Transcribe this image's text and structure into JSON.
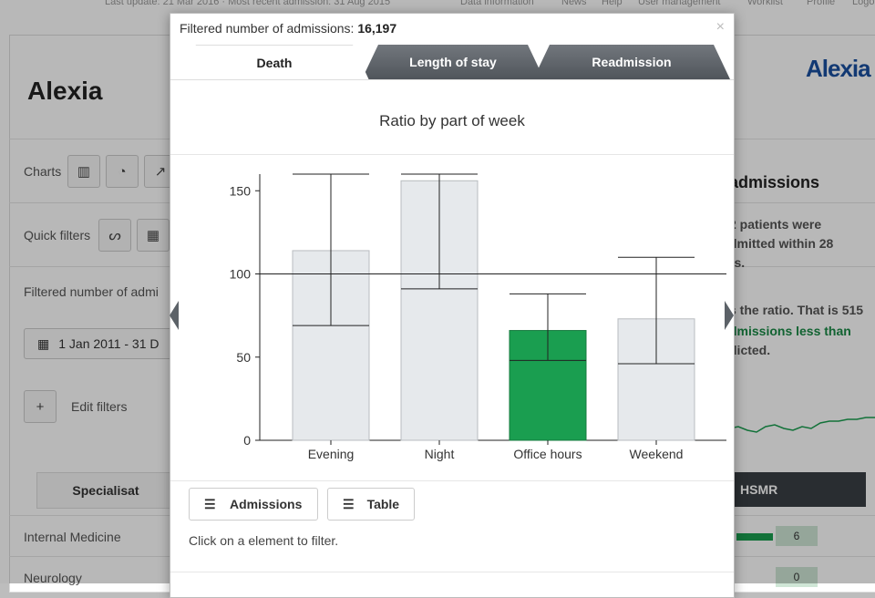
{
  "background": {
    "topbar_text": "Last update: 21 Mar 2016 · Most recent admission: 31 Aug 2015",
    "topbar_links": [
      "Data information",
      "News",
      "Help",
      "User management",
      "Worklist",
      "Profile",
      "Logo"
    ],
    "title": "Alexia",
    "logo_text": "Alexia",
    "charts_label": "Charts",
    "quick_filters_label": "Quick filters",
    "filtered_label": "Filtered number of admi",
    "date_range": "1 Jan 2011 - 31 D",
    "edit_filters": "Edit filters",
    "tab_specialism": "Specialisat",
    "tab_hsmr": "HSMR",
    "rows": [
      {
        "label": "Internal Medicine",
        "count": "6"
      },
      {
        "label": "Neurology",
        "count": "0"
      }
    ],
    "right_heading": "admissions",
    "right_text_1": "2 patients were",
    "right_text_2": "dmitted within 28",
    "right_text_3": "rs.",
    "right_text_4": "s the ratio. That is 515",
    "right_text_5": "dmissions less than",
    "right_text_6": "dicted."
  },
  "modal": {
    "header_label": "Filtered number of admissions:",
    "header_value": "16,197",
    "close": "×",
    "tabs": [
      "Death",
      "Length of stay",
      "Readmission"
    ],
    "chart_title": "Ratio by part of week",
    "buttons": {
      "admissions": "Admissions",
      "table": "Table"
    },
    "hint": "Click on a element to filter."
  },
  "colors": {
    "bar_default": "#e6e9ec",
    "bar_highlight": "#1a9e50",
    "tab_dark": "#5c6268"
  },
  "chart_data": {
    "type": "bar",
    "categories": [
      "Evening",
      "Night",
      "Office hours",
      "Weekend"
    ],
    "values": [
      114,
      156,
      66,
      73
    ],
    "lower": [
      69,
      91,
      48,
      46
    ],
    "upper": [
      160,
      160,
      88,
      110
    ],
    "highlight": [
      false,
      false,
      true,
      false
    ],
    "reference_line": 100,
    "ylim": [
      0,
      160
    ],
    "yticks": [
      0,
      50,
      100,
      150
    ],
    "title": "Ratio by part of week",
    "xlabel": "",
    "ylabel": ""
  }
}
